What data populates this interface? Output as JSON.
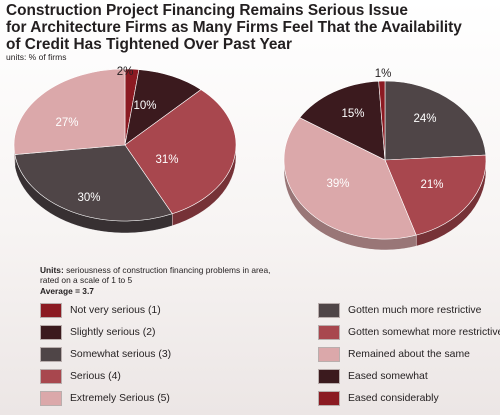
{
  "title_lines": [
    "Construction Project Financing Remains Serious Issue",
    "for Architecture Firms as Many Firms Feel That the Availability",
    "of Credit Has Tightened Over Past Year"
  ],
  "units_top": "units: % of firms",
  "note": {
    "units_label": "Units:",
    "units_text": "seriousness of construction financing problems in area, rated on a scale of 1 to 5",
    "average_text": "Average = 3.7"
  },
  "chart_data": [
    {
      "type": "pie",
      "slices": [
        {
          "label": "Not very serious (1)",
          "value": 2,
          "display": "2%",
          "color": "#8b1a22"
        },
        {
          "label": "Slightly serious (2)",
          "value": 10,
          "display": "10%",
          "color": "#3b1a1e"
        },
        {
          "label": "Serious (4)",
          "value": 31,
          "display": "31%",
          "color": "#a8474e"
        },
        {
          "label": "Somewhat serious (3)",
          "value": 30,
          "display": "30%",
          "color": "#4f4547"
        },
        {
          "label": "Extremely Serious (5)",
          "value": 27,
          "display": "27%",
          "color": "#dba8aa"
        }
      ],
      "legend": [
        {
          "label": "Not very serious (1)",
          "color": "#8b1a22"
        },
        {
          "label": "Slightly serious (2)",
          "color": "#3b1a1e"
        },
        {
          "label": "Somewhat serious (3)",
          "color": "#4f4547"
        },
        {
          "label": "Serious (4)",
          "color": "#a8474e"
        },
        {
          "label": "Extremely Serious (5)",
          "color": "#dba8aa"
        }
      ]
    },
    {
      "type": "pie",
      "slices": [
        {
          "label": "Gotten much more restrictive",
          "value": 24,
          "display": "24%",
          "color": "#4f4547"
        },
        {
          "label": "Gotten somewhat more restrictive",
          "value": 21,
          "display": "21%",
          "color": "#a8474e"
        },
        {
          "label": "Remained about the same",
          "value": 39,
          "display": "39%",
          "color": "#dba8aa"
        },
        {
          "label": "Eased somewhat",
          "value": 15,
          "display": "15%",
          "color": "#3b1a1e"
        },
        {
          "label": "Eased considerably",
          "value": 1,
          "display": "1%",
          "color": "#8b1a22"
        }
      ],
      "legend": [
        {
          "label": "Gotten much more restrictive",
          "color": "#4f4547"
        },
        {
          "label": "Gotten somewhat more restrictive",
          "color": "#a8474e"
        },
        {
          "label": "Remained about the same",
          "color": "#dba8aa"
        },
        {
          "label": "Eased somewhat",
          "color": "#3b1a1e"
        },
        {
          "label": "Eased considerably",
          "color": "#8b1a22"
        }
      ]
    }
  ]
}
